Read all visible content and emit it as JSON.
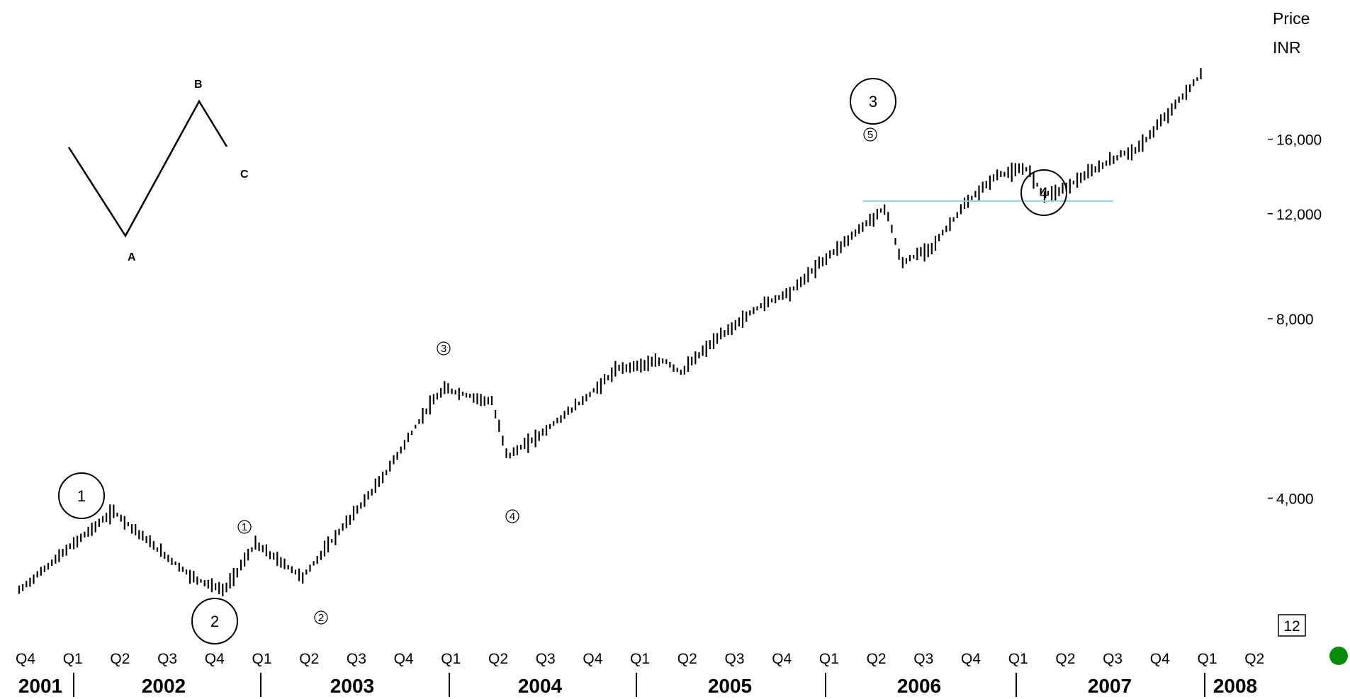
{
  "chart_data": {
    "type": "bar",
    "bar_style": "OHLC price bars",
    "title": "",
    "y_axis": {
      "title": "Price",
      "unit": "INR",
      "scale": "log",
      "range": [
        2400,
        21000
      ],
      "ticks": [
        4000,
        8000,
        12000,
        16000
      ],
      "tick_labels": [
        "4,000",
        "8,000",
        "12,000",
        "16,000"
      ],
      "position": "right"
    },
    "x_axis": {
      "quarter_labels": [
        "Q4",
        "Q1",
        "Q2",
        "Q3",
        "Q4",
        "Q1",
        "Q2",
        "Q3",
        "Q4",
        "Q1",
        "Q2",
        "Q3",
        "Q4",
        "Q1",
        "Q2",
        "Q3",
        "Q4",
        "Q1",
        "Q2",
        "Q3",
        "Q4",
        "Q1",
        "Q2",
        "Q3",
        "Q4",
        "Q1",
        "Q2"
      ],
      "year_labels": [
        "2001",
        "2002",
        "2003",
        "2004",
        "2005",
        "2006",
        "2007",
        "2008"
      ],
      "range": [
        "2001-10",
        "2008-06"
      ]
    },
    "grid": false,
    "legend": "none",
    "periodicity_label": "12",
    "anchors": [
      [
        "2001-10",
        2800
      ],
      [
        "2002-02",
        3450
      ],
      [
        "2002-04",
        3800
      ],
      [
        "2002-07",
        3250
      ],
      [
        "2002-09",
        2950
      ],
      [
        "2002-11",
        2800
      ],
      [
        "2003-01",
        3350
      ],
      [
        "2003-04",
        2950
      ],
      [
        "2003-07",
        3700
      ],
      [
        "2003-09",
        4300
      ],
      [
        "2003-12",
        5700
      ],
      [
        "2004-01",
        6100
      ],
      [
        "2004-04",
        5800
      ],
      [
        "2004-05",
        4700
      ],
      [
        "2004-07",
        5100
      ],
      [
        "2004-10",
        5900
      ],
      [
        "2004-12",
        6600
      ],
      [
        "2005-03",
        6800
      ],
      [
        "2005-04",
        6500
      ],
      [
        "2005-06",
        7300
      ],
      [
        "2005-09",
        8400
      ],
      [
        "2005-11",
        8900
      ],
      [
        "2006-01",
        10000
      ],
      [
        "2006-04",
        11700
      ],
      [
        "2006-05",
        12300
      ],
      [
        "2006-06",
        9900
      ],
      [
        "2006-08",
        10600
      ],
      [
        "2006-10",
        12400
      ],
      [
        "2006-12",
        13900
      ],
      [
        "2007-02",
        14300
      ],
      [
        "2007-03",
        12900
      ],
      [
        "2007-04",
        13100
      ],
      [
        "2007-07",
        14600
      ],
      [
        "2007-08",
        15100
      ],
      [
        "2007-09",
        15400
      ],
      [
        "2007-12",
        19100
      ],
      [
        "2008-01",
        20500
      ]
    ],
    "horizontal_line": {
      "value": 12600,
      "from": "2006-04",
      "to": "2007-07",
      "color": "#9ccfd8"
    },
    "annotations": {
      "wave_major": [
        {
          "label": "1",
          "date": "2002-04"
        },
        {
          "label": "2",
          "date": "2002-11"
        },
        {
          "label": "3",
          "date": "2006-05"
        },
        {
          "label": "4",
          "date": "2007-04"
        }
      ],
      "wave_minor": [
        {
          "label": "1",
          "date": "2003-01"
        },
        {
          "label": "2",
          "date": "2003-04"
        },
        {
          "label": "3",
          "date": "2004-01"
        },
        {
          "label": "4",
          "date": "2004-05"
        },
        {
          "label": "5",
          "date": "2006-05"
        }
      ],
      "abc_sketch": [
        "A",
        "B",
        "C"
      ]
    }
  }
}
